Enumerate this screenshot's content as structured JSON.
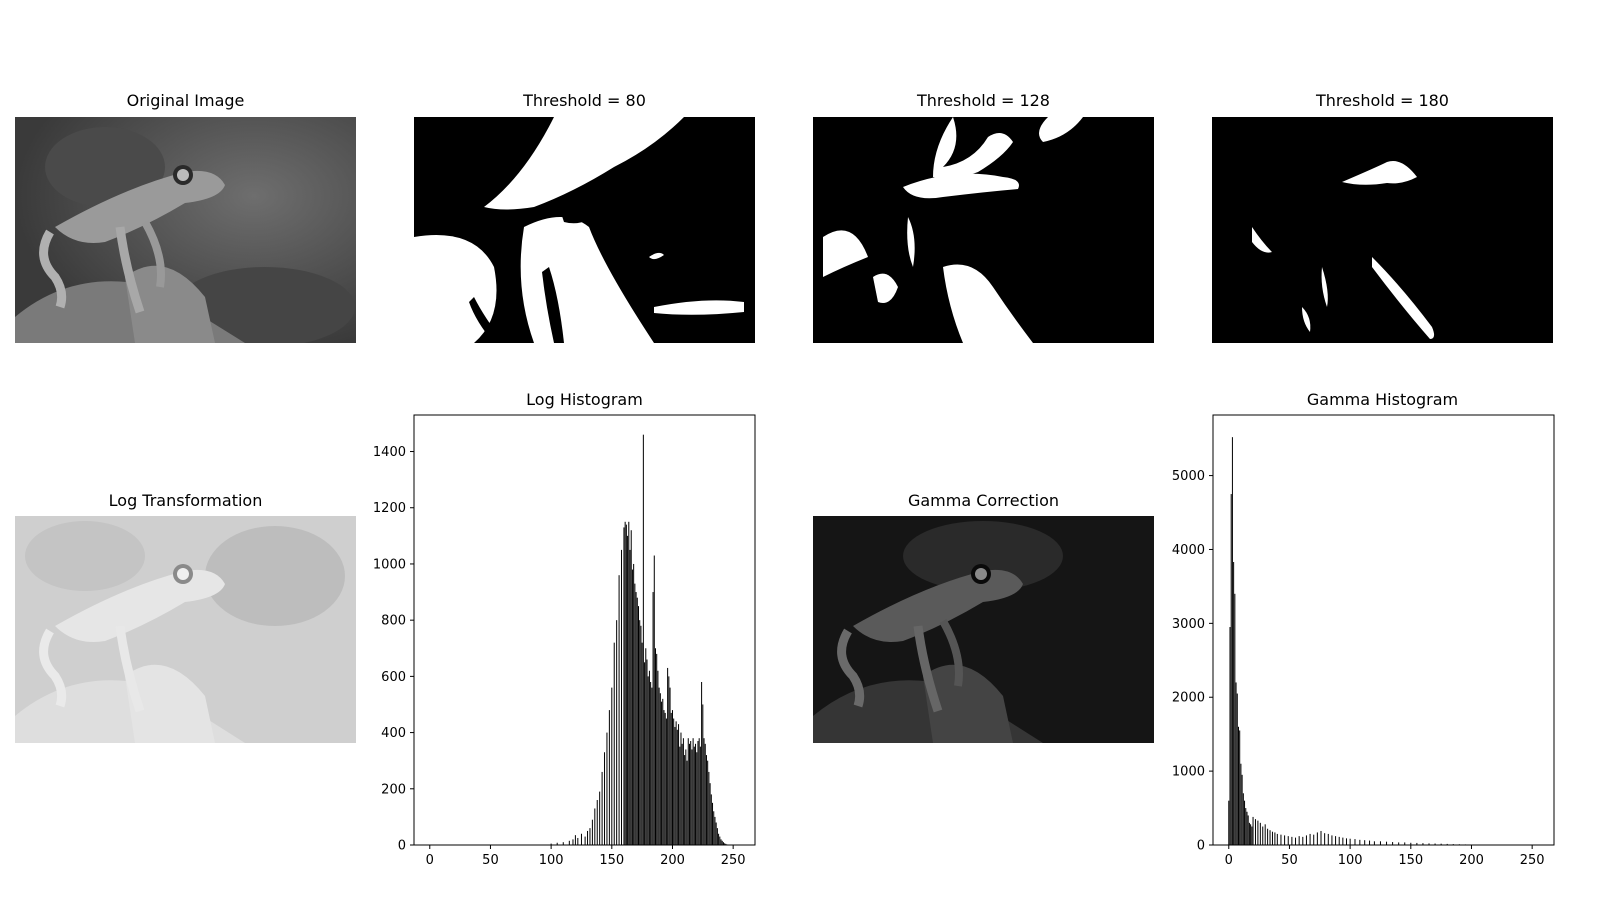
{
  "panels": {
    "original": {
      "title": "Original Image"
    },
    "threshold_80": {
      "title": "Threshold = 80"
    },
    "threshold_128": {
      "title": "Threshold = 128"
    },
    "threshold_180": {
      "title": "Threshold = 180"
    },
    "log_transform": {
      "title": "Log Transformation"
    },
    "gamma_correction": {
      "title": "Gamma Correction"
    }
  },
  "chart_data": [
    {
      "type": "bar",
      "title": "Log Histogram",
      "xlabel": "",
      "ylabel": "",
      "xlim": [
        -13,
        268
      ],
      "ylim": [
        0,
        1530
      ],
      "xticks": [
        0,
        50,
        100,
        150,
        200,
        250
      ],
      "yticks": [
        0,
        200,
        400,
        600,
        800,
        1000,
        1200,
        1400
      ],
      "grid": false,
      "color": "#000000",
      "series": [
        {
          "x": [
            100,
            105,
            110,
            115,
            118,
            120,
            122,
            125,
            128,
            130,
            132,
            134,
            136,
            138,
            140,
            142,
            144,
            146,
            148,
            150,
            152,
            154,
            156,
            158,
            160,
            161,
            162,
            163,
            164,
            165,
            166,
            167,
            168,
            169,
            170,
            171,
            172,
            173,
            174,
            175,
            176,
            177,
            178,
            179,
            180,
            181,
            182,
            183,
            184,
            185,
            186,
            187,
            188,
            189,
            190,
            191,
            192,
            193,
            194,
            195,
            196,
            197,
            198,
            199,
            200,
            201,
            202,
            203,
            204,
            205,
            206,
            207,
            208,
            209,
            210,
            211,
            212,
            213,
            214,
            215,
            216,
            217,
            218,
            219,
            220,
            221,
            222,
            223,
            224,
            225,
            226,
            227,
            228,
            229,
            230,
            231,
            232,
            233,
            234,
            235,
            236,
            237,
            238,
            239,
            240,
            241,
            242,
            243,
            244,
            245,
            246,
            247,
            248,
            249,
            250,
            251,
            252,
            253
          ],
          "values": [
            5,
            8,
            10,
            15,
            20,
            35,
            25,
            40,
            30,
            50,
            60,
            90,
            130,
            160,
            190,
            260,
            330,
            400,
            480,
            560,
            720,
            800,
            960,
            1050,
            1130,
            1150,
            1140,
            1100,
            1150,
            1050,
            1120,
            980,
            1000,
            930,
            900,
            880,
            850,
            800,
            780,
            720,
            1460,
            650,
            700,
            660,
            600,
            620,
            580,
            560,
            900,
            1030,
            700,
            680,
            620,
            560,
            540,
            510,
            520,
            480,
            470,
            450,
            630,
            600,
            560,
            470,
            480,
            450,
            420,
            440,
            410,
            430,
            350,
            400,
            360,
            380,
            320,
            340,
            300,
            380,
            360,
            370,
            340,
            380,
            350,
            360,
            330,
            370,
            380,
            350,
            580,
            500,
            380,
            360,
            320,
            300,
            260,
            220,
            180,
            150,
            120,
            100,
            80,
            60,
            40,
            30,
            20,
            15,
            10,
            6,
            4,
            2,
            1,
            1,
            0,
            0,
            0,
            0,
            0,
            0
          ]
        }
      ]
    },
    {
      "type": "bar",
      "title": "Gamma Histogram",
      "xlabel": "",
      "ylabel": "",
      "xlim": [
        -13,
        268
      ],
      "ylim": [
        0,
        5820
      ],
      "xticks": [
        0,
        50,
        100,
        150,
        200,
        250
      ],
      "yticks": [
        0,
        1000,
        2000,
        3000,
        4000,
        5000
      ],
      "grid": false,
      "color": "#000000",
      "series": [
        {
          "x": [
            0,
            1,
            2,
            3,
            4,
            5,
            6,
            7,
            8,
            9,
            10,
            11,
            12,
            13,
            14,
            15,
            16,
            17,
            18,
            19,
            20,
            22,
            24,
            26,
            28,
            30,
            32,
            34,
            36,
            38,
            40,
            43,
            46,
            49,
            52,
            55,
            58,
            61,
            64,
            67,
            70,
            73,
            76,
            79,
            82,
            85,
            88,
            91,
            94,
            97,
            100,
            104,
            108,
            112,
            116,
            120,
            125,
            130,
            135,
            140,
            145,
            150,
            155,
            160,
            165,
            170,
            175,
            180,
            185,
            190,
            195,
            200,
            205,
            210,
            215,
            220
          ],
          "values": [
            600,
            2950,
            4750,
            5520,
            3830,
            3400,
            2200,
            2050,
            1600,
            1550,
            1100,
            950,
            700,
            600,
            500,
            450,
            400,
            300,
            280,
            250,
            380,
            350,
            330,
            300,
            250,
            280,
            220,
            200,
            180,
            170,
            150,
            140,
            130,
            120,
            110,
            100,
            120,
            110,
            130,
            150,
            140,
            170,
            190,
            160,
            150,
            130,
            120,
            110,
            100,
            90,
            85,
            80,
            70,
            65,
            60,
            50,
            50,
            45,
            40,
            35,
            35,
            30,
            28,
            25,
            22,
            20,
            18,
            15,
            12,
            10,
            8,
            6,
            5,
            4,
            3,
            2
          ]
        }
      ]
    }
  ]
}
